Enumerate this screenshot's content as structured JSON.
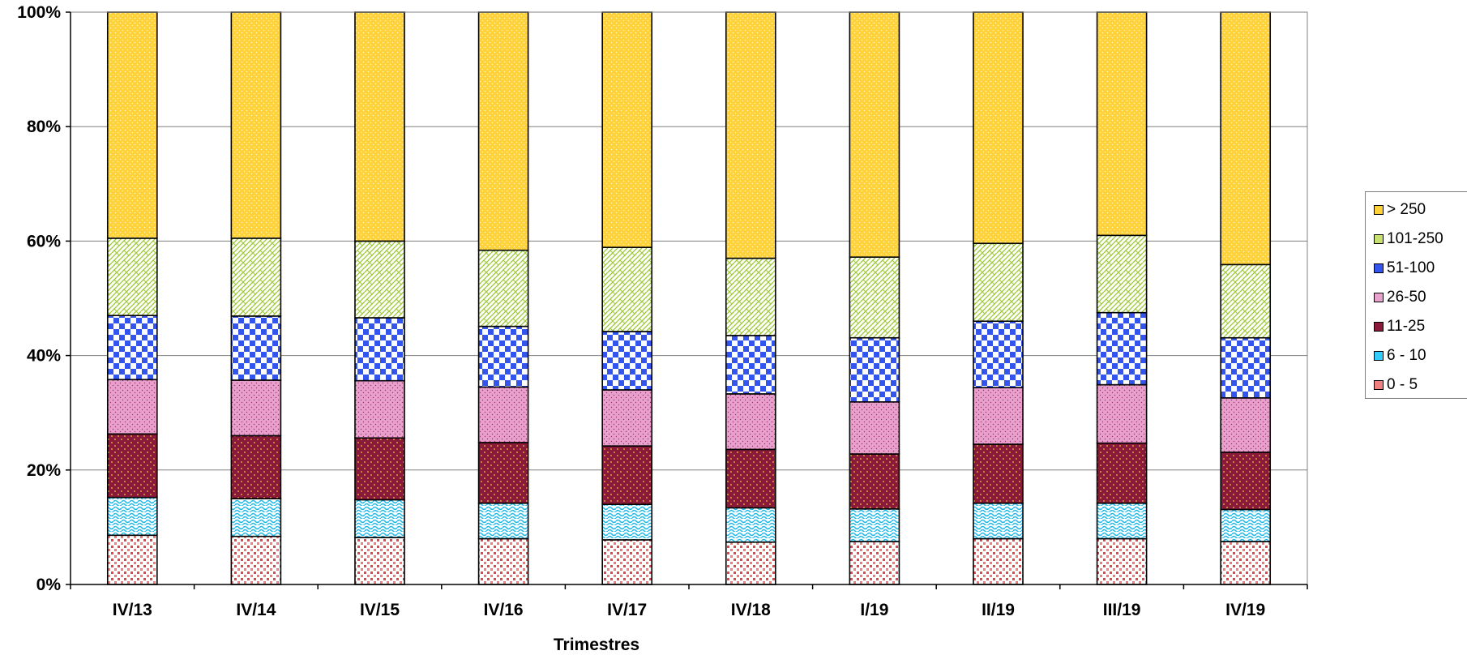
{
  "chart_data": {
    "type": "bar",
    "stacked": true,
    "percent": true,
    "xlabel": "Trimestres",
    "ylabel": "",
    "ylim": [
      0,
      100
    ],
    "yticks": [
      "0%",
      "20%",
      "40%",
      "60%",
      "80%",
      "100%"
    ],
    "grid": true,
    "legend_position": "right",
    "categories": [
      "IV/13",
      "IV/14",
      "IV/15",
      "IV/16",
      "IV/17",
      "IV/18",
      "I/19",
      "II/19",
      "III/19",
      "IV/19"
    ],
    "series": [
      {
        "name": "0 - 5",
        "color": "#f08080",
        "values": [
          8.6,
          8.4,
          8.2,
          8.0,
          7.8,
          7.4,
          7.5,
          8.0,
          8.0,
          7.5
        ]
      },
      {
        "name": "6 - 10",
        "color": "#33ccff",
        "values": [
          6.6,
          6.6,
          6.6,
          6.2,
          6.2,
          6.0,
          5.7,
          6.2,
          6.2,
          5.6
        ]
      },
      {
        "name": "11-25",
        "color": "#8b1a3a",
        "values": [
          11.1,
          11.0,
          10.8,
          10.6,
          10.2,
          10.2,
          9.6,
          10.3,
          10.5,
          10.0
        ]
      },
      {
        "name": "26-50",
        "color": "#e8a0cc",
        "values": [
          9.5,
          9.7,
          10.0,
          9.7,
          9.8,
          9.7,
          9.1,
          9.9,
          10.2,
          9.5
        ]
      },
      {
        "name": "51-100",
        "color": "#3355ee",
        "values": [
          11.2,
          11.2,
          11.0,
          10.6,
          10.2,
          10.2,
          11.2,
          11.6,
          12.6,
          10.5
        ]
      },
      {
        "name": "101-250",
        "color": "#c8e070",
        "values": [
          13.5,
          13.6,
          13.4,
          13.3,
          14.7,
          13.5,
          14.1,
          13.6,
          13.5,
          12.8
        ]
      },
      {
        "name": "> 250",
        "color": "#ffd23a",
        "values": [
          39.5,
          39.5,
          40.0,
          41.6,
          41.1,
          43.0,
          42.8,
          40.4,
          39.0,
          44.1
        ]
      }
    ]
  }
}
